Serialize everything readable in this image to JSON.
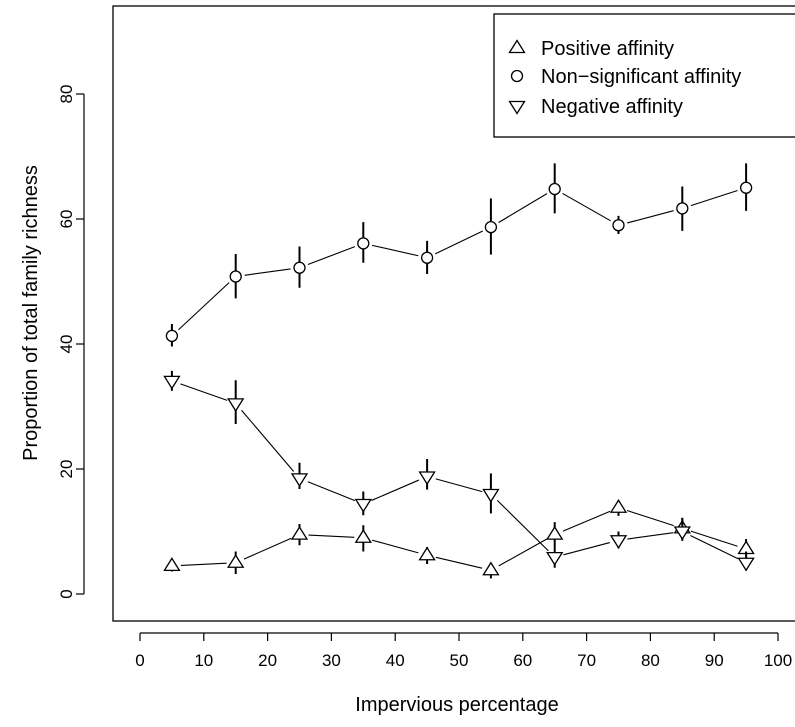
{
  "chart_data": {
    "type": "line",
    "title": "",
    "xlabel": "Impervious percentage",
    "ylabel": "Proportion of total family richness",
    "xlim": [
      0,
      100
    ],
    "ylim": [
      0,
      95
    ],
    "x_ticks": [
      0,
      10,
      20,
      30,
      40,
      50,
      60,
      70,
      80,
      90,
      100
    ],
    "y_ticks": [
      0,
      20,
      40,
      60,
      80
    ],
    "x_tick_labels": [
      "0",
      "10",
      "20",
      "30",
      "40",
      "50",
      "60",
      "70",
      "80",
      "90",
      "100"
    ],
    "y_tick_labels": [
      "0",
      "20",
      "40",
      "60",
      "80"
    ],
    "grid": false,
    "legend_position": "top-right",
    "x": [
      5,
      15,
      25,
      35,
      45,
      55,
      65,
      75,
      85,
      95
    ],
    "series": [
      {
        "name": "Positive affinity",
        "marker": "triangle-up",
        "values": [
          4.5,
          5.0,
          9.5,
          9.0,
          6.2,
          3.8,
          9.5,
          13.8,
          10.5,
          7.2
        ],
        "error_low": [
          3.6,
          3.2,
          7.8,
          6.8,
          4.8,
          2.5,
          7.5,
          12.5,
          8.8,
          5.5
        ],
        "error_high": [
          5.5,
          6.8,
          11.2,
          11.0,
          7.5,
          5.0,
          11.5,
          15.0,
          12.2,
          8.8
        ]
      },
      {
        "name": "Non−significant affinity",
        "marker": "circle",
        "values": [
          41.3,
          50.8,
          52.2,
          56.1,
          53.8,
          58.7,
          64.8,
          59.0,
          61.7,
          65.0
        ],
        "error_low": [
          39.6,
          47.3,
          49.0,
          53.0,
          51.2,
          54.3,
          60.9,
          57.6,
          58.1,
          61.3
        ],
        "error_high": [
          43.2,
          54.4,
          55.6,
          59.5,
          56.5,
          63.3,
          68.9,
          60.5,
          65.2,
          68.9
        ]
      },
      {
        "name": "Negative affinity",
        "marker": "triangle-down",
        "values": [
          34.1,
          30.5,
          18.5,
          14.4,
          18.8,
          16.0,
          5.9,
          8.6,
          10.0,
          5.0
        ],
        "error_low": [
          32.5,
          27.2,
          16.8,
          12.6,
          16.7,
          12.9,
          4.2,
          7.3,
          8.5,
          3.8
        ],
        "error_high": [
          35.7,
          34.2,
          21.0,
          16.4,
          21.6,
          19.3,
          7.5,
          10.0,
          12.1,
          6.8
        ]
      }
    ]
  }
}
